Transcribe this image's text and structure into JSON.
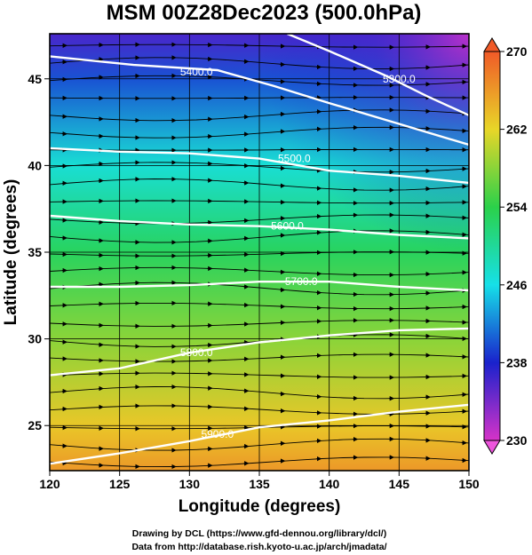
{
  "chart_data": {
    "type": "heatmap",
    "title": "MSM 00Z28Dec2023 (500.0hPa)",
    "xlabel": "Longitude (degrees)",
    "ylabel": "Latitude  (degrees)",
    "xlim": [
      120,
      150
    ],
    "ylim": [
      22.4,
      47.6
    ],
    "x_ticks": [
      120,
      125,
      130,
      135,
      140,
      145,
      150
    ],
    "y_ticks": [
      25,
      30,
      35,
      40,
      45
    ],
    "grid": true,
    "colorbar": {
      "placement": "right",
      "min": 230,
      "max": 270,
      "ticks": [
        230,
        238,
        246,
        254,
        262,
        270
      ],
      "colors": [
        "#d633c8",
        "#1a22cc",
        "#16e0e8",
        "#2bd14a",
        "#e8d628",
        "#f05a28"
      ]
    },
    "temperature_field": {
      "description": "temperature increasing toward the south-southwest",
      "latitude_profile": [
        {
          "lat": 22.4,
          "value": 266
        },
        {
          "lat": 25,
          "value": 263
        },
        {
          "lat": 30,
          "value": 258
        },
        {
          "lat": 35,
          "value": 253
        },
        {
          "lat": 40,
          "value": 247
        },
        {
          "lat": 45,
          "value": 240
        },
        {
          "lat": 47.6,
          "value": 236
        }
      ],
      "cold_core": {
        "lon": 150,
        "lat": 47.6,
        "value": 231
      }
    },
    "contours": [
      {
        "label": "5300.0",
        "points": [
          [
            137,
            47.6
          ],
          [
            140,
            46.6
          ],
          [
            144,
            45.2
          ],
          [
            147,
            44.0
          ],
          [
            150,
            42.9
          ]
        ],
        "label_at": [
          145,
          45.0
        ]
      },
      {
        "label": "5400.0",
        "points": [
          [
            120,
            46.3
          ],
          [
            126,
            45.8
          ],
          [
            132,
            45.5
          ],
          [
            136,
            44.6
          ],
          [
            140,
            43.6
          ],
          [
            145,
            42.4
          ],
          [
            150,
            41.2
          ]
        ],
        "label_at": [
          130.5,
          45.4
        ]
      },
      {
        "label": "5500.0",
        "points": [
          [
            120,
            41.0
          ],
          [
            125,
            40.8
          ],
          [
            130,
            40.7
          ],
          [
            135,
            40.4
          ],
          [
            140,
            39.7
          ],
          [
            145,
            39.4
          ],
          [
            150,
            39.0
          ]
        ],
        "label_at": [
          137.5,
          40.4
        ]
      },
      {
        "label": "5600.0",
        "points": [
          [
            120,
            37.1
          ],
          [
            125,
            36.8
          ],
          [
            130,
            36.6
          ],
          [
            135,
            36.5
          ],
          [
            140,
            36.3
          ],
          [
            145,
            36.0
          ],
          [
            150,
            35.8
          ]
        ],
        "label_at": [
          137,
          36.5
        ]
      },
      {
        "label": "5700.0",
        "points": [
          [
            120,
            33.0
          ],
          [
            125,
            33.0
          ],
          [
            130,
            33.1
          ],
          [
            135,
            33.3
          ],
          [
            140,
            33.3
          ],
          [
            145,
            33.0
          ],
          [
            150,
            32.8
          ]
        ],
        "label_at": [
          138,
          33.3
        ]
      },
      {
        "label": "5800.0",
        "points": [
          [
            120,
            27.9
          ],
          [
            125,
            28.3
          ],
          [
            130,
            29.2
          ],
          [
            135,
            29.8
          ],
          [
            140,
            30.2
          ],
          [
            145,
            30.5
          ],
          [
            150,
            30.6
          ]
        ],
        "label_at": [
          130.5,
          29.2
        ]
      },
      {
        "label": "5900.0",
        "points": [
          [
            120,
            22.8
          ],
          [
            125,
            23.4
          ],
          [
            130,
            24.1
          ],
          [
            135,
            24.9
          ],
          [
            140,
            25.3
          ],
          [
            145,
            25.8
          ],
          [
            150,
            26.2
          ]
        ],
        "label_at": [
          132,
          24.5
        ]
      }
    ],
    "flow": "westerly wind streamlines across the domain"
  },
  "credits": {
    "line1": "Drawing by DCL (https://www.gfd-dennou.org/library/dcl/)",
    "line2": "Data from http://database.rish.kyoto-u.ac.jp/arch/jmadata/"
  }
}
